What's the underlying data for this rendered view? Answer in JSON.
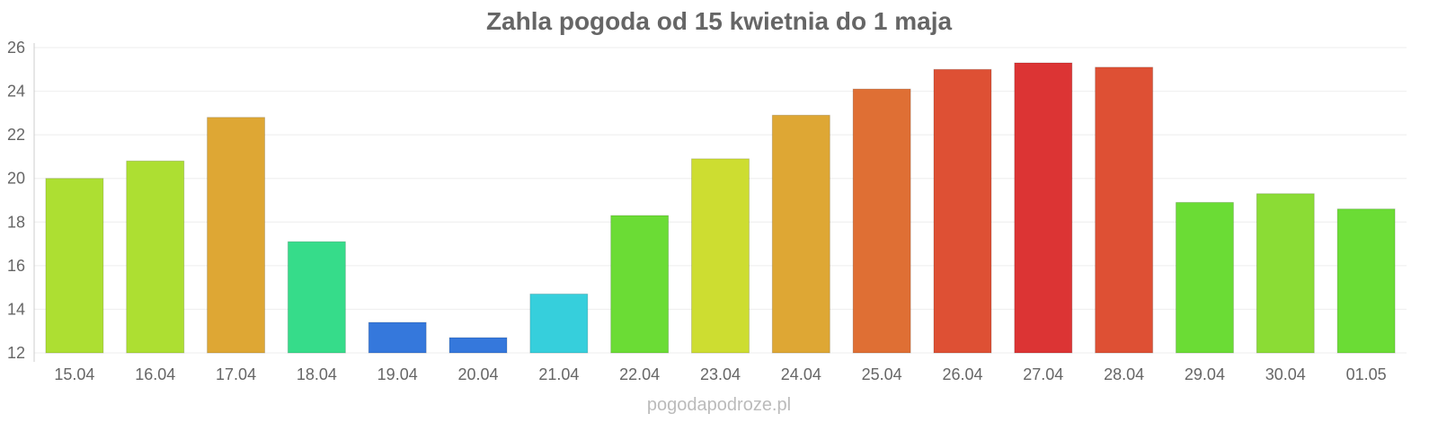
{
  "chart_data": {
    "type": "bar",
    "title": "Zahla pogoda od 15 kwietnia do 1 maja",
    "footer": "pogodapodroze.pl",
    "xlabel": "",
    "ylabel": "",
    "ylim": [
      12,
      26
    ],
    "yticks": [
      12,
      14,
      16,
      18,
      20,
      22,
      24,
      26
    ],
    "grid": true,
    "categories": [
      "15.04",
      "16.04",
      "17.04",
      "18.04",
      "19.04",
      "20.04",
      "21.04",
      "22.04",
      "23.04",
      "24.04",
      "25.04",
      "26.04",
      "27.04",
      "28.04",
      "29.04",
      "30.04",
      "01.05"
    ],
    "values": [
      20.0,
      20.8,
      22.8,
      17.1,
      13.4,
      12.7,
      14.7,
      18.3,
      20.9,
      22.9,
      24.1,
      25.0,
      25.3,
      25.1,
      18.9,
      19.3,
      18.6
    ],
    "colors": [
      "#addf32",
      "#addf32",
      "#dea734",
      "#36dc8a",
      "#3578dc",
      "#3578dc",
      "#36cfdc",
      "#6bdc35",
      "#cddd31",
      "#dea734",
      "#df6f34",
      "#de5034",
      "#dc3434",
      "#de5034",
      "#6bdc35",
      "#8bdc35",
      "#6bdc35"
    ]
  }
}
